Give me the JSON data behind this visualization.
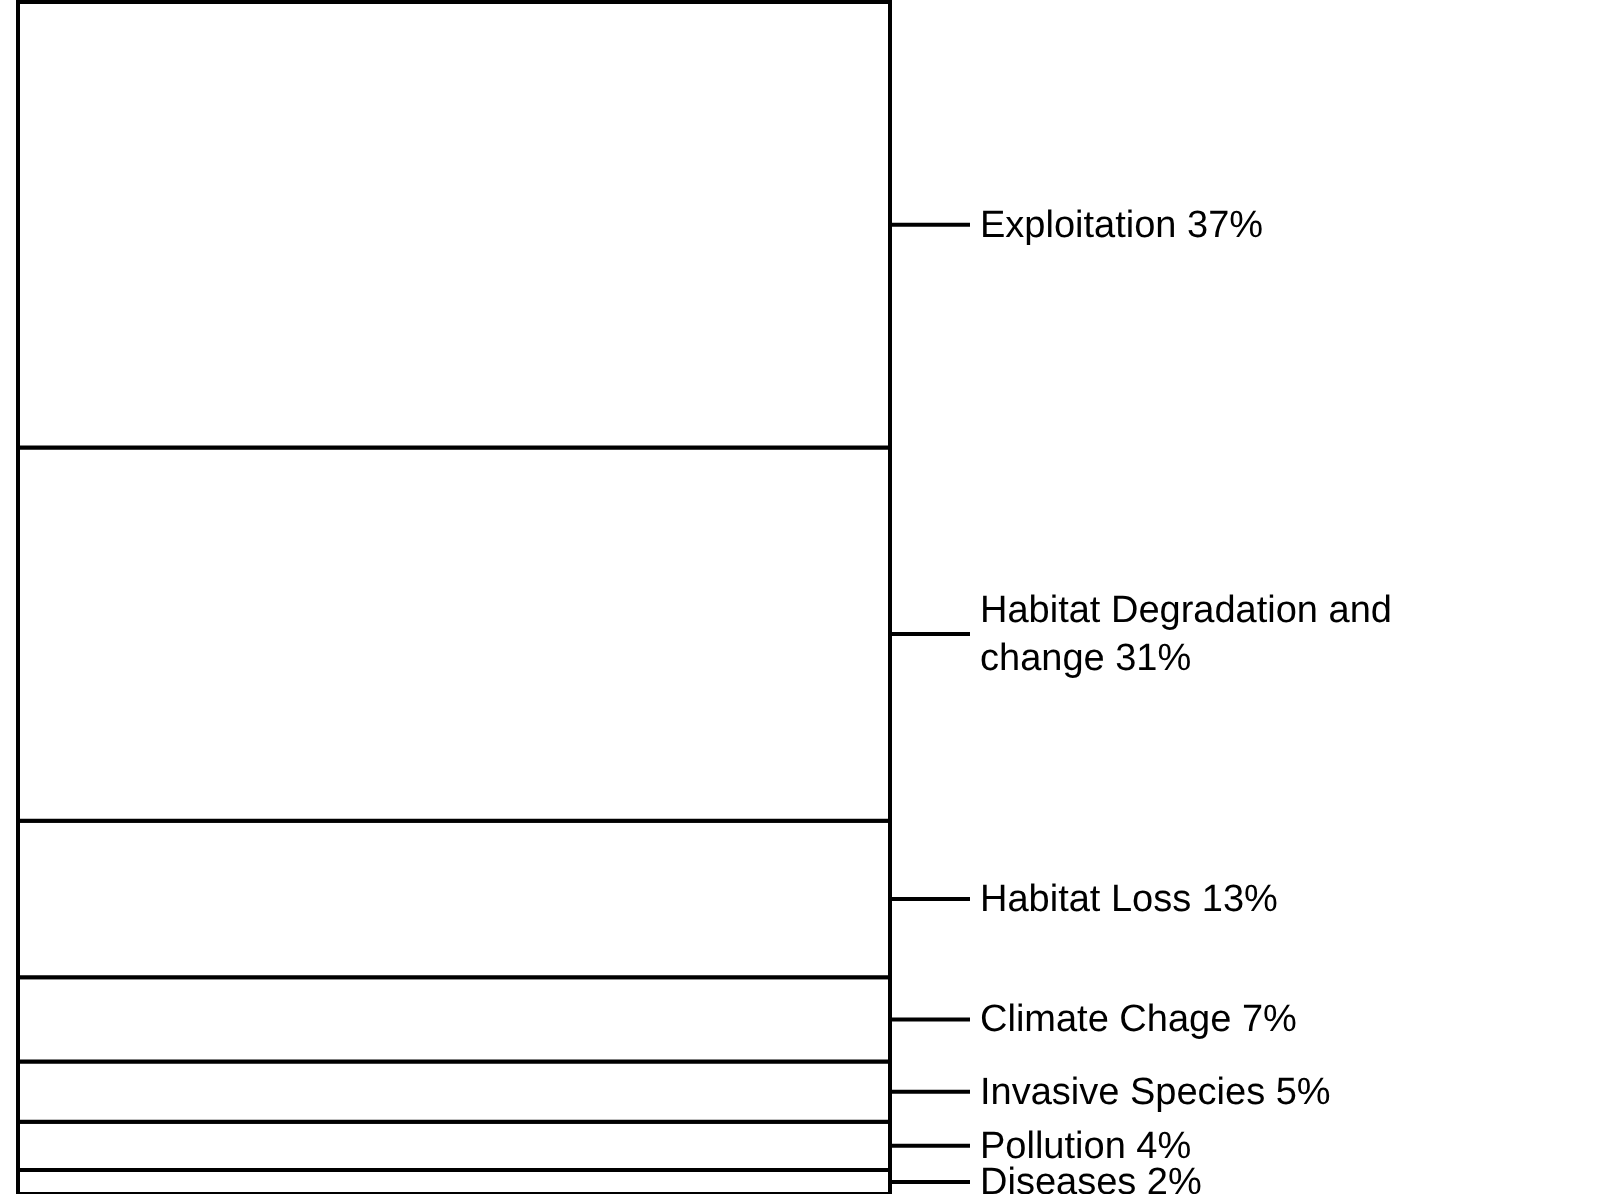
{
  "chart_data": {
    "type": "bar",
    "stacked": true,
    "categories": [
      null
    ],
    "series": [
      {
        "color": "#ffffff",
        "values": [
          2
        ],
        "value_labels": [
          "Diseases 2%"
        ]
      },
      {
        "color": "#ffffff",
        "values": [
          4
        ],
        "value_labels": [
          "Pollution 4%"
        ]
      },
      {
        "color": "#ffffff",
        "values": [
          5
        ],
        "value_labels": [
          "Invasive Species 5%"
        ]
      },
      {
        "color": "#ffffff",
        "values": [
          7
        ],
        "value_labels": [
          "Climate Chage 7%"
        ]
      },
      {
        "color": "#ffffff",
        "values": [
          13
        ],
        "value_labels": [
          "Habitat Loss 13%"
        ]
      },
      {
        "color": "#ffffff",
        "values": [
          31
        ],
        "value_labels": [
          "Habitat Degradation and change 31%"
        ]
      },
      {
        "color": "#ffffff",
        "values": [
          37
        ],
        "value_labels": [
          "Exploitation 37%"
        ]
      }
    ]
  }
}
